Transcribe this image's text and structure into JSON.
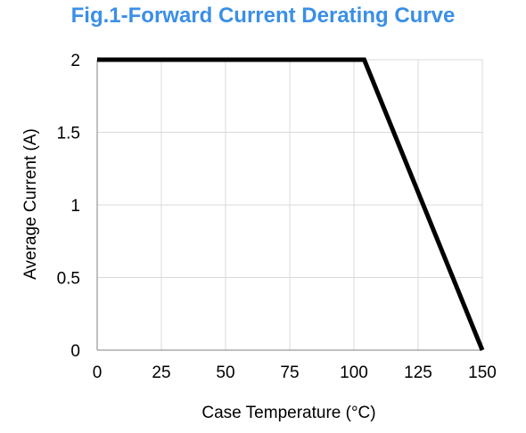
{
  "chart_data": {
    "type": "line",
    "title": "Fig.1-Forward Current Derating Curve",
    "xlabel": "Case Temperature (°C)",
    "ylabel": "Average Current (A)",
    "xlim": [
      0,
      150
    ],
    "ylim": [
      0,
      2
    ],
    "xticks": [
      0,
      25,
      50,
      75,
      100,
      125,
      150
    ],
    "yticks": [
      0,
      0.5,
      1,
      1.5,
      2
    ],
    "xtick_labels": [
      "0",
      "25",
      "50",
      "75",
      "100",
      "125",
      "150"
    ],
    "ytick_labels": [
      "0",
      "0.5",
      "1",
      "1.5",
      "2"
    ],
    "grid": true,
    "series": [
      {
        "x": [
          0,
          104,
          150
        ],
        "y": [
          2,
          2,
          0
        ],
        "color": "#000000"
      }
    ]
  }
}
